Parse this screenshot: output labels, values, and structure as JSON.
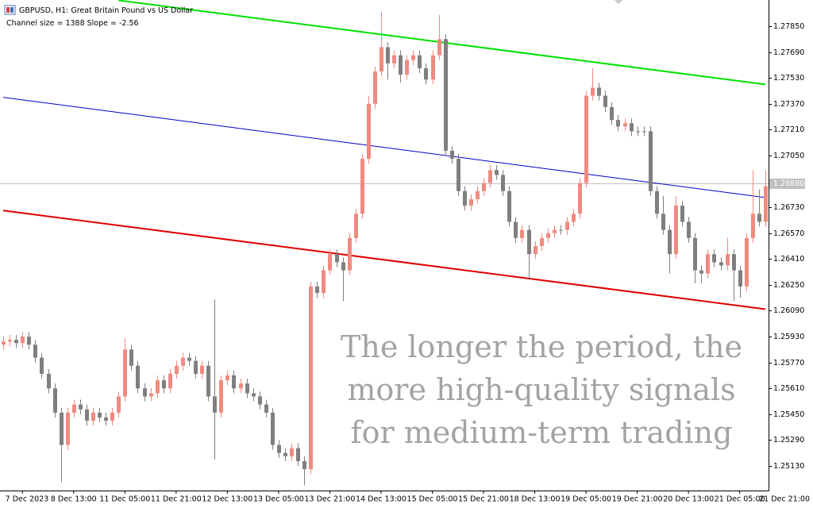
{
  "chart_data": {
    "type": "candlestick",
    "title": "GBPUSD, H1:  Great Britain Pound vs US Dollar",
    "subtitle": "Channel size = 1388 Slope = -2.56",
    "annotation": [
      "The longer the period, the",
      "more high-quality signals",
      "for medium-term trading"
    ],
    "up_color": "#f08a80",
    "down_color": "#7f7f7f",
    "candles": {
      "open": [
        1.2588,
        1.259,
        1.2591,
        1.2589,
        1.2593,
        1.2588,
        1.258,
        1.257,
        1.2561,
        1.2546,
        1.2526,
        1.2546,
        1.2551,
        1.2548,
        1.2541,
        1.2546,
        1.2543,
        1.2541,
        1.2546,
        1.2556,
        1.2585,
        1.2575,
        1.2561,
        1.2556,
        1.2558,
        1.2566,
        1.2561,
        1.257,
        1.2575,
        1.258,
        1.2578,
        1.257,
        1.2575,
        1.2556,
        1.2546,
        1.2566,
        1.2569,
        1.2561,
        1.2564,
        1.2558,
        1.2556,
        1.2551,
        1.2546,
        1.2526,
        1.2521,
        1.2519,
        1.2524,
        1.2516,
        1.2511,
        1.2624,
        1.262,
        1.2634,
        1.2644,
        1.2639,
        1.2634,
        1.2654,
        1.2669,
        1.2703,
        1.2737,
        1.2757,
        1.2772,
        1.2762,
        1.2767,
        1.2755,
        1.2764,
        1.2767,
        1.2759,
        1.2752,
        1.2767,
        1.2777,
        1.2708,
        1.2703,
        1.2683,
        1.2674,
        1.2678,
        1.2683,
        1.2688,
        1.2696,
        1.2693,
        1.2683,
        1.2664,
        1.2654,
        1.2659,
        1.2644,
        1.2649,
        1.2654,
        1.2657,
        1.2659,
        1.2659,
        1.2664,
        1.2669,
        1.2688,
        1.2742,
        1.2747,
        1.2742,
        1.2735,
        1.2727,
        1.2723,
        1.2725,
        1.272,
        1.272,
        1.272,
        1.2683,
        1.2669,
        1.2659,
        1.2644,
        1.2674,
        1.2664,
        1.2654,
        1.2634,
        1.2632,
        1.2644,
        1.2639,
        1.2637,
        1.2644,
        1.2634,
        1.2624,
        1.2654,
        1.2669,
        1.2664
      ],
      "high": [
        1.2593,
        1.2594,
        1.2594,
        1.2596,
        1.2596,
        1.2591,
        1.2583,
        1.2573,
        1.2564,
        1.2549,
        1.2549,
        1.2554,
        1.2554,
        1.2551,
        1.2549,
        1.2549,
        1.2546,
        1.2549,
        1.2559,
        1.2592,
        1.2588,
        1.2578,
        1.2564,
        1.2561,
        1.2569,
        1.2569,
        1.2573,
        1.2578,
        1.2583,
        1.2583,
        1.2581,
        1.2578,
        1.2578,
        1.2616,
        1.2569,
        1.2572,
        1.2572,
        1.2567,
        1.2567,
        1.2561,
        1.2559,
        1.2554,
        1.2549,
        1.2529,
        1.2524,
        1.2527,
        1.2527,
        1.2519,
        1.2627,
        1.2627,
        1.2637,
        1.2647,
        1.2647,
        1.2642,
        1.2657,
        1.2672,
        1.2706,
        1.2742,
        1.276,
        1.2794,
        1.2775,
        1.277,
        1.277,
        1.2767,
        1.277,
        1.277,
        1.2762,
        1.277,
        1.2792,
        1.278,
        1.2711,
        1.2706,
        1.2686,
        1.2681,
        1.2686,
        1.2691,
        1.2699,
        1.2699,
        1.2696,
        1.2686,
        1.2667,
        1.2662,
        1.2662,
        1.2652,
        1.2657,
        1.266,
        1.2662,
        1.2662,
        1.2667,
        1.2672,
        1.2691,
        1.2745,
        1.2759,
        1.275,
        1.2745,
        1.2738,
        1.273,
        1.2728,
        1.2728,
        1.2723,
        1.2723,
        1.2723,
        1.2686,
        1.268,
        1.2662,
        1.268,
        1.2677,
        1.2667,
        1.2657,
        1.2637,
        1.2647,
        1.2647,
        1.2642,
        1.2654,
        1.2647,
        1.2637,
        1.2657,
        1.2696,
        1.2684,
        1.2696
      ],
      "low": [
        1.2585,
        1.2587,
        1.2586,
        1.2586,
        1.2585,
        1.2577,
        1.2567,
        1.2558,
        1.2543,
        1.2503,
        1.2523,
        1.2543,
        1.2545,
        1.2538,
        1.2538,
        1.254,
        1.2538,
        1.2538,
        1.2543,
        1.2553,
        1.2572,
        1.2558,
        1.2553,
        1.2553,
        1.2555,
        1.2558,
        1.2558,
        1.2567,
        1.2572,
        1.2575,
        1.2567,
        1.2567,
        1.2553,
        1.2517,
        1.2543,
        1.2563,
        1.2558,
        1.2558,
        1.2555,
        1.2553,
        1.2548,
        1.2543,
        1.2523,
        1.2518,
        1.2516,
        1.2516,
        1.2513,
        1.2501,
        1.2508,
        1.2617,
        1.2617,
        1.2631,
        1.2636,
        1.2615,
        1.2631,
        1.2651,
        1.2666,
        1.27,
        1.2734,
        1.2754,
        1.2752,
        1.2759,
        1.275,
        1.2752,
        1.2761,
        1.2756,
        1.2749,
        1.2749,
        1.2764,
        1.2705,
        1.27,
        1.268,
        1.2671,
        1.2671,
        1.2675,
        1.268,
        1.2685,
        1.269,
        1.268,
        1.2661,
        1.2651,
        1.2651,
        1.2629,
        1.2641,
        1.2646,
        1.2651,
        1.2654,
        1.2656,
        1.2656,
        1.2661,
        1.2666,
        1.2685,
        1.2739,
        1.2739,
        1.2732,
        1.2724,
        1.272,
        1.272,
        1.2717,
        1.2717,
        1.2717,
        1.268,
        1.2666,
        1.2656,
        1.2632,
        1.2641,
        1.2661,
        1.2651,
        1.2626,
        1.2626,
        1.2629,
        1.2636,
        1.2634,
        1.2634,
        1.2615,
        1.2617,
        1.2621,
        1.2651,
        1.2661,
        1.2661
      ],
      "close": [
        1.259,
        1.2591,
        1.2589,
        1.2593,
        1.2588,
        1.258,
        1.257,
        1.2561,
        1.2546,
        1.2526,
        1.2546,
        1.2551,
        1.2548,
        1.2541,
        1.2546,
        1.2543,
        1.2541,
        1.2546,
        1.2556,
        1.2585,
        1.2575,
        1.2561,
        1.2556,
        1.2558,
        1.2566,
        1.2561,
        1.257,
        1.2575,
        1.258,
        1.2578,
        1.257,
        1.2575,
        1.2556,
        1.2546,
        1.2566,
        1.2569,
        1.2561,
        1.2564,
        1.2558,
        1.2556,
        1.2551,
        1.2546,
        1.2526,
        1.2521,
        1.2519,
        1.2524,
        1.2516,
        1.2511,
        1.2624,
        1.262,
        1.2634,
        1.2644,
        1.2639,
        1.2634,
        1.2654,
        1.2669,
        1.2703,
        1.2737,
        1.2757,
        1.2772,
        1.2762,
        1.2767,
        1.2755,
        1.2764,
        1.2767,
        1.2759,
        1.2752,
        1.2767,
        1.2777,
        1.2708,
        1.2703,
        1.2683,
        1.2674,
        1.2678,
        1.2683,
        1.2688,
        1.2696,
        1.2693,
        1.2683,
        1.2664,
        1.2654,
        1.2659,
        1.2644,
        1.2649,
        1.2654,
        1.2657,
        1.2659,
        1.2659,
        1.2664,
        1.2669,
        1.2688,
        1.2742,
        1.2747,
        1.2742,
        1.2735,
        1.2727,
        1.2723,
        1.2725,
        1.272,
        1.272,
        1.272,
        1.2683,
        1.2669,
        1.2659,
        1.2644,
        1.2674,
        1.2664,
        1.2654,
        1.2634,
        1.2632,
        1.2644,
        1.2639,
        1.2637,
        1.2644,
        1.2634,
        1.2624,
        1.2654,
        1.2669,
        1.2664,
        1.2686
      ]
    },
    "lines": [
      {
        "color": "#00e000",
        "x": [
          18,
          119
        ],
        "values": [
          1.2801,
          1.2749
        ]
      },
      {
        "color": "#0000c8",
        "x": [
          0,
          119
        ],
        "values": [
          1.2741,
          1.2679
        ]
      },
      {
        "color": "#e00000",
        "x": [
          0,
          119
        ],
        "values": [
          1.2671,
          1.261
        ]
      }
    ],
    "current_price": {
      "value": 1.2688,
      "label": "1.26880"
    },
    "ylim": [
      1.24978,
      1.28012
    ],
    "yticks": [
      {
        "value": 1.2785,
        "label": "1.27850"
      },
      {
        "value": 1.2769,
        "label": "1.27690"
      },
      {
        "value": 1.2753,
        "label": "1.27530"
      },
      {
        "value": 1.2737,
        "label": "1.27370"
      },
      {
        "value": 1.2721,
        "label": "1.27210"
      },
      {
        "value": 1.2705,
        "label": "1.27050"
      },
      {
        "value": 1.2673,
        "label": "1.26730"
      },
      {
        "value": 1.2657,
        "label": "1.26570"
      },
      {
        "value": 1.2641,
        "label": "1.26410"
      },
      {
        "value": 1.2625,
        "label": "1.26250"
      },
      {
        "value": 1.2609,
        "label": "1.26090"
      },
      {
        "value": 1.2593,
        "label": "1.25930"
      },
      {
        "value": 1.2577,
        "label": "1.25770"
      },
      {
        "value": 1.2561,
        "label": "1.25610"
      },
      {
        "value": 1.2545,
        "label": "1.25450"
      },
      {
        "value": 1.2529,
        "label": "1.25290"
      },
      {
        "value": 1.2513,
        "label": "1.25130"
      }
    ],
    "xticks": [
      {
        "value": 3,
        "label": "7 Dec 2023"
      },
      {
        "value": 11,
        "label": "8 Dec 13:00"
      },
      {
        "value": 19,
        "label": "11 Dec 05:00"
      },
      {
        "value": 27,
        "label": "11 Dec 21:00"
      },
      {
        "value": 35,
        "label": "12 Dec 13:00"
      },
      {
        "value": 43,
        "label": "13 Dec 05:00"
      },
      {
        "value": 51,
        "label": "13 Dec 21:00"
      },
      {
        "value": 59,
        "label": "14 Dec 13:00"
      },
      {
        "value": 67,
        "label": "15 Dec 05:00"
      },
      {
        "value": 75,
        "label": "15 Dec 21:00"
      },
      {
        "value": 83,
        "label": "18 Dec 13:00"
      },
      {
        "value": 91,
        "label": "19 Dec 05:00"
      },
      {
        "value": 99,
        "label": "19 Dec 21:00"
      },
      {
        "value": 107,
        "label": "20 Dec 13:00"
      },
      {
        "value": 115,
        "label": "21 Dec 05:00"
      },
      {
        "value": 123,
        "label": "21 Dec 21:00"
      }
    ]
  }
}
